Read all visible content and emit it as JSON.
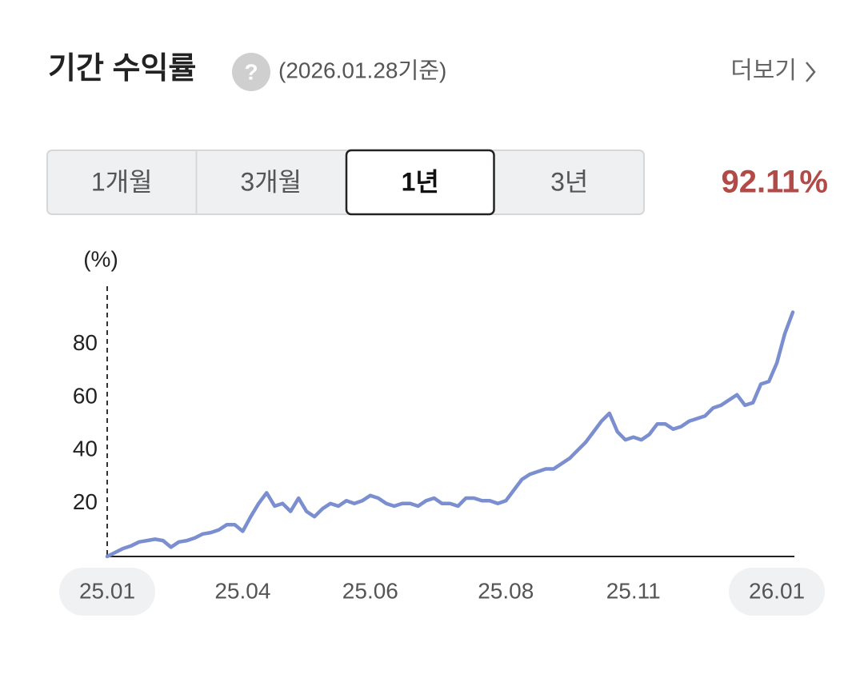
{
  "header": {
    "title": "기간 수익률",
    "help_icon": "?",
    "base_date": "(2026.01.28기준)",
    "more": "더보기"
  },
  "tabs": [
    "1개월",
    "3개월",
    "1년",
    "3년"
  ],
  "selected_tab": 2,
  "period_return": "92.11%",
  "chart_data": {
    "type": "line",
    "y_label": "(%)",
    "categories": [
      "25.01",
      null,
      null,
      null,
      null,
      null,
      null,
      null,
      null,
      null,
      null,
      null,
      null,
      null,
      null,
      null,
      null,
      "25.04",
      null,
      null,
      null,
      null,
      null,
      null,
      null,
      null,
      null,
      null,
      null,
      null,
      null,
      null,
      null,
      "25.06",
      null,
      null,
      null,
      null,
      null,
      null,
      null,
      null,
      null,
      null,
      null,
      null,
      null,
      null,
      null,
      null,
      "25.08",
      null,
      null,
      null,
      null,
      null,
      null,
      null,
      null,
      null,
      null,
      null,
      null,
      null,
      null,
      null,
      "25.11",
      null,
      null,
      null,
      null,
      null,
      null,
      null,
      null,
      null,
      null,
      null,
      null,
      null,
      null,
      null,
      null,
      null,
      "26.01",
      null,
      null
    ],
    "values": [
      0,
      1.5,
      3,
      4,
      5.5,
      6,
      6.5,
      6,
      3.5,
      5.5,
      6,
      7,
      8.5,
      9,
      10,
      12,
      12,
      9.5,
      15,
      20,
      24,
      19,
      20,
      17,
      22,
      17,
      15,
      18,
      20,
      19,
      21,
      20,
      21,
      23,
      22,
      20,
      19,
      20,
      20,
      19,
      21,
      22,
      20,
      20,
      19,
      22,
      22,
      21,
      21,
      20,
      21,
      25,
      29,
      31,
      32,
      33,
      33,
      35,
      37,
      40,
      43,
      47,
      51,
      54,
      47,
      44,
      45,
      44,
      46,
      50,
      50,
      48,
      49,
      51,
      52,
      53,
      56,
      57,
      59,
      61,
      57,
      58,
      65,
      66,
      73,
      84,
      92.11
    ],
    "color": "#7a8ed0",
    "ylim": [
      0,
      101
    ],
    "yticks": [
      20,
      40,
      60,
      80
    ]
  }
}
